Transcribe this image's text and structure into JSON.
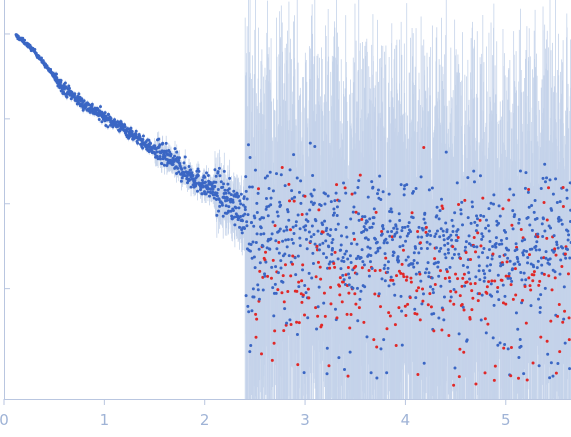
{
  "chart_data": {
    "type": "scatter",
    "title": "",
    "xlabel": "",
    "ylabel": "",
    "xlim": [
      0,
      5.65
    ],
    "ylim": [
      -4.3,
      0.4
    ],
    "y_scale": "log10",
    "x_ticks": [
      0,
      1,
      2,
      3,
      4,
      5
    ],
    "x_tick_labels": [
      "0",
      "1",
      "2",
      "3",
      "4",
      "5"
    ],
    "y_ticks": [
      0,
      -1,
      -2,
      -3
    ],
    "y_tick_labels": [
      "",
      "",
      "",
      ""
    ],
    "grid": false,
    "legend": "none",
    "colors": {
      "points": "#3a66c4",
      "outliers": "#e02828",
      "error_bars": "#c5d3ea",
      "axis": "#b9c6e0",
      "tick_label": "#9fb3d6"
    },
    "series": [
      {
        "x": [
          0.12,
          0.2,
          0.3,
          0.4,
          0.5,
          0.6,
          0.7,
          0.8,
          0.9,
          1.0,
          1.1,
          1.2,
          1.3,
          1.4,
          1.5,
          1.6,
          1.7,
          1.8,
          1.9,
          2.0,
          2.1,
          2.2,
          2.3,
          2.4,
          2.5,
          2.6,
          2.7,
          2.8,
          2.9,
          3.0,
          3.2,
          3.4,
          3.6,
          3.8,
          4.0,
          4.2,
          4.4,
          4.6,
          4.8,
          5.0,
          5.2,
          5.4,
          5.6
        ],
        "y": [
          -0.02,
          -0.09,
          -0.2,
          -0.35,
          -0.5,
          -0.64,
          -0.74,
          -0.83,
          -0.9,
          -0.98,
          -1.05,
          -1.12,
          -1.2,
          -1.29,
          -1.37,
          -1.45,
          -1.52,
          -1.62,
          -1.7,
          -1.78,
          -1.84,
          -1.92,
          -2.02,
          -2.14,
          -2.24,
          -2.3,
          -2.33,
          -2.37,
          -2.4,
          -2.42,
          -2.45,
          -2.47,
          -2.49,
          -2.51,
          -2.52,
          -2.53,
          -2.54,
          -2.54,
          -2.53,
          -2.52,
          -2.5,
          -2.47,
          -2.44
        ]
      }
    ]
  }
}
